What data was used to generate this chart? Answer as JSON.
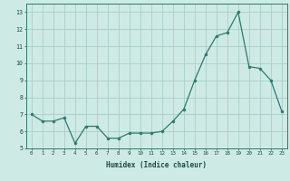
{
  "x": [
    0,
    1,
    2,
    3,
    4,
    5,
    6,
    7,
    8,
    9,
    10,
    11,
    12,
    13,
    14,
    15,
    16,
    17,
    18,
    19,
    20,
    21,
    22,
    23
  ],
  "y": [
    7.0,
    6.6,
    6.6,
    6.8,
    5.3,
    6.3,
    6.3,
    5.6,
    5.6,
    5.9,
    5.9,
    5.9,
    6.0,
    6.6,
    7.3,
    9.0,
    10.5,
    11.6,
    11.8,
    13.0,
    9.8,
    9.7,
    9.0,
    7.2
  ],
  "title": "",
  "xlabel": "Humidex (Indice chaleur)",
  "ylabel": "",
  "xlim": [
    -0.5,
    23.5
  ],
  "ylim": [
    5,
    13.5
  ],
  "yticks": [
    5,
    6,
    7,
    8,
    9,
    10,
    11,
    12,
    13
  ],
  "xticks": [
    0,
    1,
    2,
    3,
    4,
    5,
    6,
    7,
    8,
    9,
    10,
    11,
    12,
    13,
    14,
    15,
    16,
    17,
    18,
    19,
    20,
    21,
    22,
    23
  ],
  "line_color": "#2d7a6e",
  "marker_color": "#2d7a6e",
  "bg_color": "#ceeae4",
  "grid_color": "#aacfc8",
  "axis_color": "#2d7a6e",
  "tick_color": "#1a4a44",
  "label_color": "#1a4a44"
}
